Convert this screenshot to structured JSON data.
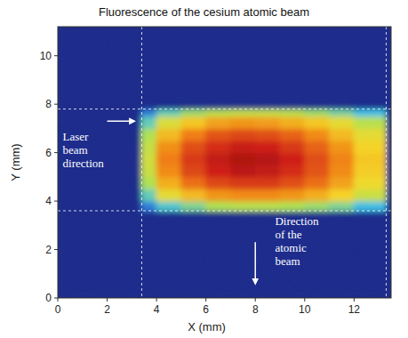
{
  "chart_data": {
    "type": "heatmap",
    "title": "Fluorescence of the cesium atomic beam",
    "x_label": "X (mm)",
    "y_label": "Y (mm)",
    "xlim": [
      0,
      13.5
    ],
    "ylim": [
      0,
      11.2
    ],
    "xticks": [
      0,
      2,
      4,
      6,
      8,
      10,
      12
    ],
    "yticks": [
      0,
      2,
      4,
      6,
      8,
      10
    ],
    "zlim": [
      0,
      100
    ],
    "x_edges": [
      0,
      3.4,
      4,
      5,
      6,
      7,
      8,
      9,
      10,
      11,
      12,
      13.3,
      13.5
    ],
    "y_edges": [
      0,
      3.6,
      4,
      4.5,
      5,
      5.5,
      6,
      6.5,
      7,
      7.5,
      7.8,
      11.2
    ],
    "cells": [
      [
        6,
        6,
        6,
        6,
        6,
        6,
        6,
        6,
        6,
        6,
        6,
        6
      ],
      [
        6,
        30,
        40,
        45,
        50,
        52,
        52,
        50,
        48,
        45,
        38,
        6
      ],
      [
        6,
        42,
        60,
        68,
        74,
        76,
        76,
        74,
        70,
        64,
        55,
        6
      ],
      [
        6,
        50,
        70,
        80,
        86,
        88,
        88,
        85,
        80,
        72,
        62,
        6
      ],
      [
        6,
        55,
        76,
        86,
        92,
        95,
        94,
        90,
        84,
        76,
        65,
        6
      ],
      [
        6,
        56,
        78,
        88,
        94,
        97,
        96,
        92,
        85,
        77,
        66,
        6
      ],
      [
        6,
        54,
        75,
        85,
        90,
        93,
        92,
        88,
        82,
        74,
        64,
        6
      ],
      [
        6,
        50,
        68,
        78,
        84,
        86,
        85,
        82,
        76,
        68,
        60,
        6
      ],
      [
        6,
        42,
        58,
        66,
        72,
        74,
        73,
        70,
        66,
        60,
        52,
        6
      ],
      [
        6,
        30,
        42,
        48,
        52,
        54,
        54,
        52,
        48,
        44,
        38,
        6
      ],
      [
        6,
        6,
        6,
        6,
        6,
        6,
        6,
        6,
        6,
        6,
        6,
        6
      ]
    ],
    "vlines": [
      3.4,
      13.3
    ],
    "hlines": [
      3.6,
      7.8
    ],
    "annotations": [
      {
        "lines": [
          "Laser",
          "beam",
          "direction"
        ],
        "x": 0.2,
        "y": 6.5,
        "arrow": [
          [
            2.0,
            7.3
          ],
          [
            3.1,
            7.3
          ]
        ]
      },
      {
        "lines": [
          "Direction",
          "of the",
          "atomic",
          "beam"
        ],
        "x": 8.8,
        "y": 3.0,
        "arrow": [
          [
            8.0,
            2.3
          ],
          [
            8.0,
            0.6
          ]
        ]
      }
    ]
  }
}
